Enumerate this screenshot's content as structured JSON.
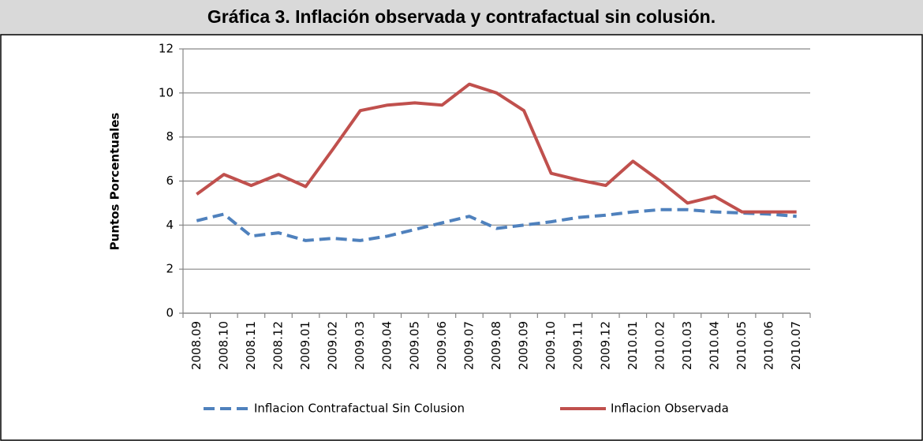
{
  "chart_data": {
    "type": "line",
    "title": "Gráfica 3. Inflación observada y contrafactual sin colusión.",
    "y_label": "Puntos Porcentuales",
    "categories": [
      "2008.09",
      "2008.10",
      "2008.11",
      "2008.12",
      "2009.01",
      "2009.02",
      "2009.03",
      "2009.04",
      "2009.05",
      "2009.06",
      "2009.07",
      "2009.08",
      "2009.09",
      "2009.10",
      "2009.11",
      "2009.12",
      "2010.01",
      "2010.02",
      "2010.03",
      "2010.04",
      "2010.05",
      "2010.06",
      "2010.07"
    ],
    "series": [
      {
        "name": "Inflacion Contrafactual Sin Colusion",
        "color": "#4f81bd",
        "dashed": true,
        "values": [
          4.2,
          4.5,
          3.5,
          3.65,
          3.3,
          3.4,
          3.3,
          3.5,
          3.8,
          4.1,
          4.4,
          3.85,
          4.0,
          4.15,
          4.35,
          4.45,
          4.6,
          4.7,
          4.7,
          4.6,
          4.55,
          4.5,
          4.4
        ]
      },
      {
        "name": "Inflacion Observada",
        "color": "#c0504d",
        "dashed": false,
        "values": [
          5.4,
          6.3,
          5.8,
          6.3,
          5.75,
          7.45,
          9.2,
          9.45,
          9.55,
          9.45,
          10.4,
          10.0,
          9.2,
          6.35,
          6.05,
          5.8,
          6.9,
          6.0,
          5.0,
          5.3,
          4.6,
          4.6,
          4.6
        ]
      }
    ],
    "ylim": [
      0,
      12
    ],
    "yticks": [
      0,
      2,
      4,
      6,
      8,
      10,
      12
    ],
    "grid": true,
    "legend": "bottom"
  }
}
